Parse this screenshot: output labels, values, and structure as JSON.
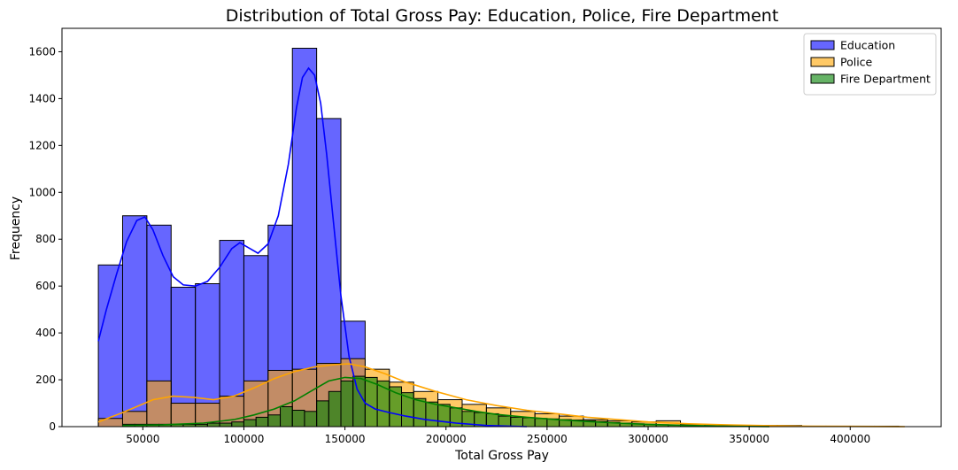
{
  "chart_data": {
    "type": "histogram",
    "title": "Distribution of Total Gross Pay: Education, Police, Fire Department",
    "xlabel": "Total Gross Pay",
    "ylabel": "Frequency",
    "xlim": [
      10000,
      445000
    ],
    "ylim": [
      0,
      1700
    ],
    "xticks": [
      50000,
      100000,
      150000,
      200000,
      250000,
      300000,
      350000,
      400000
    ],
    "yticks": [
      0,
      200,
      400,
      600,
      800,
      1000,
      1200,
      1400,
      1600
    ],
    "grid": false,
    "legend_position": "top-right",
    "series": [
      {
        "name": "Education",
        "color": "#0000ff",
        "line_color": "#0000ff",
        "bin_start": 28000,
        "bin_width": 12000,
        "values": [
          690,
          900,
          860,
          595,
          610,
          795,
          730,
          860,
          1615,
          1315,
          450
        ],
        "kde": [
          [
            28000,
            365
          ],
          [
            32000,
            500
          ],
          [
            37000,
            650
          ],
          [
            42000,
            790
          ],
          [
            47000,
            880
          ],
          [
            51000,
            895
          ],
          [
            55000,
            840
          ],
          [
            60000,
            730
          ],
          [
            65000,
            640
          ],
          [
            70000,
            605
          ],
          [
            76000,
            600
          ],
          [
            82000,
            620
          ],
          [
            88000,
            680
          ],
          [
            94000,
            760
          ],
          [
            98000,
            785
          ],
          [
            103000,
            760
          ],
          [
            107000,
            740
          ],
          [
            112000,
            780
          ],
          [
            117000,
            900
          ],
          [
            122000,
            1120
          ],
          [
            126000,
            1360
          ],
          [
            129000,
            1490
          ],
          [
            132000,
            1530
          ],
          [
            135000,
            1500
          ],
          [
            138000,
            1380
          ],
          [
            141000,
            1160
          ],
          [
            144000,
            900
          ],
          [
            148000,
            560
          ],
          [
            152000,
            300
          ],
          [
            156000,
            160
          ],
          [
            160000,
            100
          ],
          [
            165000,
            75
          ],
          [
            172000,
            60
          ],
          [
            180000,
            45
          ],
          [
            190000,
            30
          ],
          [
            205000,
            15
          ],
          [
            220000,
            5
          ],
          [
            240000,
            0
          ]
        ]
      },
      {
        "name": "Police",
        "color": "#ffa500",
        "line_color": "#ffa500",
        "bin_start": 28000,
        "bin_width": 12000,
        "values": [
          35,
          65,
          195,
          100,
          100,
          130,
          195,
          240,
          245,
          270,
          290,
          245,
          190,
          150,
          115,
          95,
          80,
          65,
          55,
          45,
          30,
          25,
          20,
          25,
          10,
          5,
          5,
          5,
          5,
          2,
          2,
          2,
          2
        ],
        "kde": [
          [
            28000,
            20
          ],
          [
            40000,
            60
          ],
          [
            55000,
            115
          ],
          [
            65000,
            130
          ],
          [
            75000,
            125
          ],
          [
            85000,
            115
          ],
          [
            95000,
            130
          ],
          [
            105000,
            165
          ],
          [
            115000,
            205
          ],
          [
            125000,
            235
          ],
          [
            135000,
            255
          ],
          [
            145000,
            265
          ],
          [
            152000,
            268
          ],
          [
            160000,
            255
          ],
          [
            170000,
            225
          ],
          [
            180000,
            190
          ],
          [
            195000,
            150
          ],
          [
            210000,
            115
          ],
          [
            225000,
            90
          ],
          [
            240000,
            70
          ],
          [
            255000,
            55
          ],
          [
            270000,
            40
          ],
          [
            285000,
            30
          ],
          [
            300000,
            20
          ],
          [
            320000,
            12
          ],
          [
            340000,
            7
          ],
          [
            360000,
            4
          ],
          [
            380000,
            2
          ],
          [
            400000,
            1
          ],
          [
            427000,
            0
          ]
        ]
      },
      {
        "name": "Fire Department",
        "color": "#008000",
        "line_color": "#008000",
        "bin_start": 40000,
        "bin_width": 6000,
        "values": [
          10,
          10,
          10,
          10,
          10,
          10,
          10,
          15,
          15,
          20,
          30,
          40,
          50,
          85,
          70,
          65,
          110,
          150,
          195,
          215,
          210,
          195,
          170,
          145,
          120,
          105,
          95,
          80,
          65,
          60,
          55,
          45,
          40,
          38,
          35,
          33,
          30,
          28,
          25,
          22,
          18,
          15,
          12,
          10,
          8,
          6,
          5,
          4,
          3,
          3
        ],
        "kde": [
          [
            40000,
            5
          ],
          [
            60000,
            8
          ],
          [
            80000,
            15
          ],
          [
            95000,
            30
          ],
          [
            105000,
            50
          ],
          [
            115000,
            75
          ],
          [
            125000,
            110
          ],
          [
            135000,
            160
          ],
          [
            142000,
            195
          ],
          [
            150000,
            210
          ],
          [
            158000,
            205
          ],
          [
            166000,
            180
          ],
          [
            175000,
            145
          ],
          [
            185000,
            115
          ],
          [
            195000,
            95
          ],
          [
            205000,
            80
          ],
          [
            215000,
            65
          ],
          [
            225000,
            52
          ],
          [
            240000,
            40
          ],
          [
            255000,
            30
          ],
          [
            270000,
            22
          ],
          [
            285000,
            15
          ],
          [
            300000,
            10
          ],
          [
            320000,
            5
          ],
          [
            340000,
            2
          ],
          [
            360000,
            0
          ]
        ]
      }
    ]
  }
}
